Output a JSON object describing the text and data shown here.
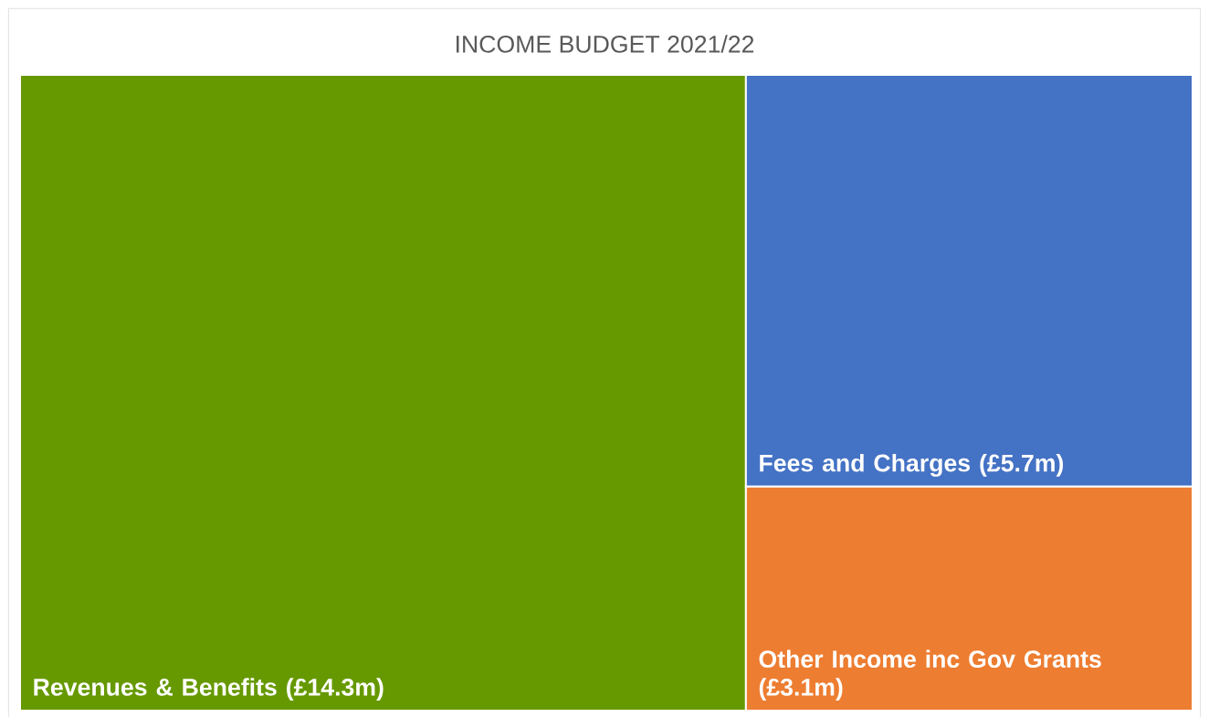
{
  "chart_data": {
    "type": "other",
    "title": "INCOME BUDGET 2021/22",
    "categories": [
      "Revenues & Benefits",
      "Fees and Charges",
      "Other Income inc Gov Grants"
    ],
    "values": [
      14.3,
      5.7,
      3.1
    ],
    "value_labels": [
      "(£14.3m)",
      "(£5.7m)",
      "(£3.1m)"
    ],
    "colors": [
      "#669900",
      "#4472c4",
      "#ed7d31"
    ]
  }
}
